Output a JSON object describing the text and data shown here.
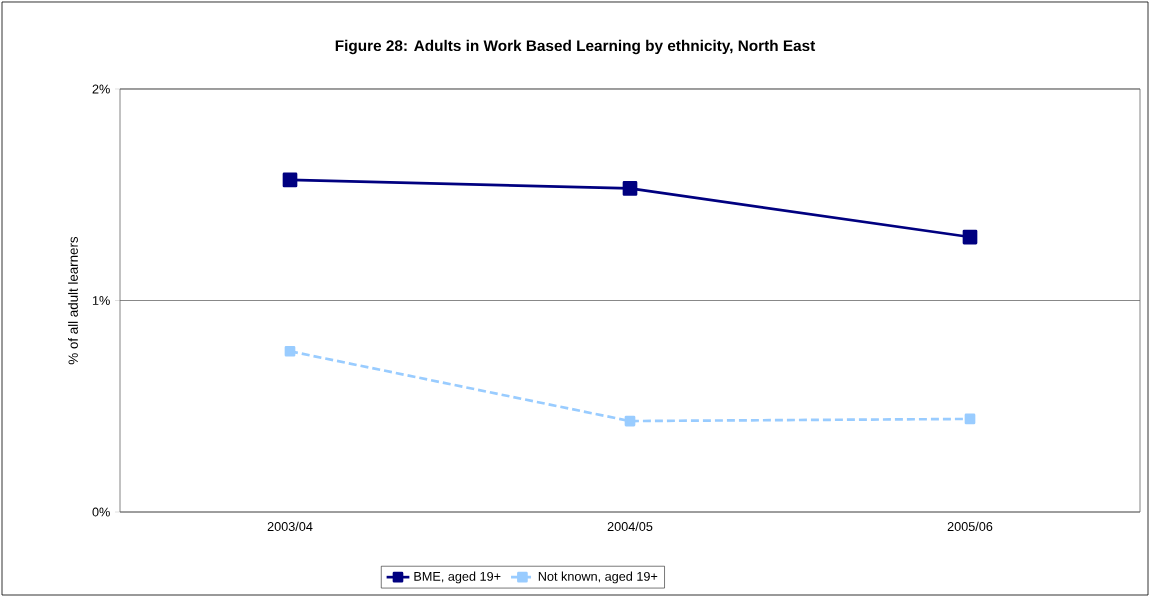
{
  "chart_data": {
    "type": "line",
    "title": "Figure 28: Adults in Work Based Learning by ethnicity, North East",
    "ylabel": "% of all adult learners",
    "categories": [
      "2003/04",
      "2004/05",
      "2005/06"
    ],
    "series": [
      {
        "name": "BME, aged 19+",
        "color": "#000080",
        "values": [
          1.57,
          1.53,
          1.3
        ],
        "line_style": "solid"
      },
      {
        "name": "Not known, aged 19+",
        "color": "#99ccff",
        "values": [
          0.76,
          0.43,
          0.44
        ],
        "line_style": "dashed"
      }
    ],
    "ylim": [
      0,
      2
    ],
    "yticks": [
      {
        "value": 0,
        "label": "0%"
      },
      {
        "value": 1,
        "label": "1%"
      },
      {
        "value": 2,
        "label": "2%"
      }
    ],
    "grid": "y",
    "legend": "bottom",
    "marker": "square"
  }
}
